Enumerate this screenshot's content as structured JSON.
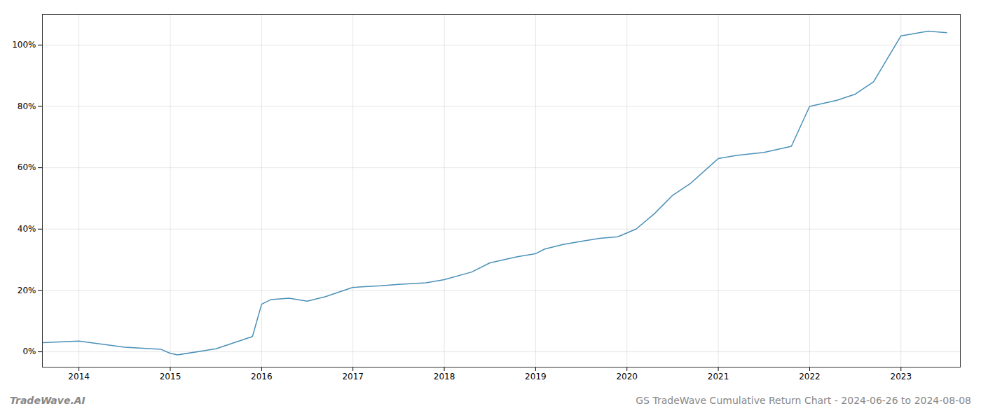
{
  "chart_data": {
    "type": "line",
    "title": "GS TradeWave Cumulative Return Chart - 2024-06-26 to 2024-08-08",
    "annotations": [
      "TradeWave.AI"
    ],
    "color": "#4a90b8",
    "x": [
      2013.6,
      2014.0,
      2014.5,
      2014.9,
      2015.0,
      2015.08,
      2015.5,
      2015.9,
      2016.0,
      2016.1,
      2016.3,
      2016.5,
      2016.7,
      2017.0,
      2017.3,
      2017.5,
      2017.8,
      2018.0,
      2018.3,
      2018.5,
      2018.8,
      2019.0,
      2019.1,
      2019.3,
      2019.5,
      2019.7,
      2019.9,
      2020.1,
      2020.3,
      2020.5,
      2020.7,
      2021.0,
      2021.2,
      2021.5,
      2021.8,
      2022.0,
      2022.3,
      2022.5,
      2022.7,
      2023.0,
      2023.3,
      2023.5
    ],
    "values": [
      3.0,
      3.5,
      1.5,
      0.8,
      -0.5,
      -1.0,
      1.0,
      5.0,
      15.5,
      17.0,
      17.5,
      16.5,
      18.0,
      21.0,
      21.5,
      22.0,
      22.5,
      23.5,
      26.0,
      29.0,
      31.0,
      32.0,
      33.5,
      35.0,
      36.0,
      37.0,
      37.5,
      40.0,
      45.0,
      51.0,
      55.0,
      63.0,
      64.0,
      65.0,
      67.0,
      80.0,
      82.0,
      84.0,
      88.0,
      103.0,
      104.5,
      104.0
    ],
    "xlim": [
      2013.6,
      2023.65
    ],
    "ylim": [
      -5,
      110
    ],
    "xticks": [
      2014,
      2015,
      2016,
      2017,
      2018,
      2019,
      2020,
      2021,
      2022,
      2023
    ],
    "yticks": [
      {
        "value": 0,
        "label": "0%"
      },
      {
        "value": 20,
        "label": "20%"
      },
      {
        "value": 40,
        "label": "40%"
      },
      {
        "value": 60,
        "label": "60%"
      },
      {
        "value": 80,
        "label": "80%"
      },
      {
        "value": 100,
        "label": "100%"
      }
    ],
    "grid": true
  }
}
